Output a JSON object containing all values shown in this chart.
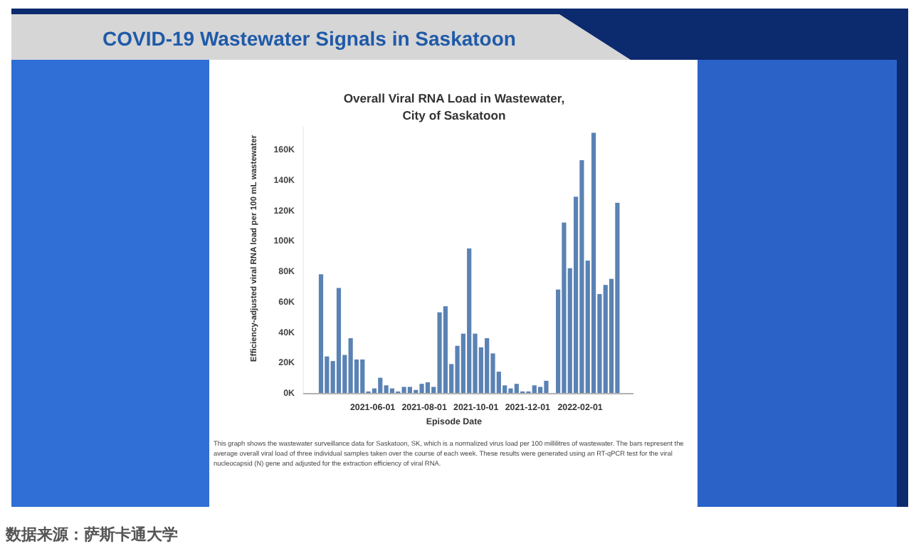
{
  "chart_data": {
    "type": "bar",
    "title": "COVID-19 Wastewater Signals in Saskatoon",
    "subtitle": "Overall Viral RNA Load in Wastewater, City of Saskatoon",
    "xlabel": "Episode Date",
    "ylabel": "Efficiency-adjusted viral RNA load per 100 mL wastewater",
    "x": [
      "2021-04-01",
      "2021-04-08",
      "2021-04-15",
      "2021-04-22",
      "2021-04-29",
      "2021-05-06",
      "2021-05-13",
      "2021-05-20",
      "2021-05-27",
      "2021-06-03",
      "2021-06-10",
      "2021-06-17",
      "2021-06-24",
      "2021-07-01",
      "2021-07-08",
      "2021-07-15",
      "2021-07-22",
      "2021-07-29",
      "2021-08-05",
      "2021-08-12",
      "2021-08-19",
      "2021-08-26",
      "2021-09-02",
      "2021-09-09",
      "2021-09-16",
      "2021-09-23",
      "2021-09-30",
      "2021-10-07",
      "2021-10-14",
      "2021-10-21",
      "2021-10-28",
      "2021-11-04",
      "2021-11-11",
      "2021-11-18",
      "2021-11-25",
      "2021-12-02",
      "2021-12-09",
      "2021-12-16",
      "2021-12-23",
      "2022-01-06",
      "2022-01-13",
      "2022-01-20",
      "2022-01-27",
      "2022-02-03",
      "2022-02-10",
      "2022-02-17",
      "2022-02-24",
      "2022-03-03",
      "2022-03-10",
      "2022-03-17"
    ],
    "values": [
      78000,
      24000,
      21000,
      69000,
      25000,
      36000,
      22000,
      22000,
      1000,
      3000,
      10000,
      5000,
      3000,
      1000,
      4000,
      4000,
      2000,
      6000,
      7000,
      4000,
      53000,
      57000,
      19000,
      31000,
      39000,
      95000,
      39000,
      30000,
      36000,
      26000,
      14000,
      5000,
      3000,
      6000,
      1000,
      1000,
      5000,
      4000,
      8000,
      68000,
      112000,
      82000,
      129000,
      153000,
      87000,
      171000,
      65000,
      71000,
      75000,
      125000
    ],
    "color": "#5a82b4",
    "xlim": [
      "2021-03-11",
      "2022-04-05"
    ],
    "xticks": [
      "2021-06-01",
      "2021-08-01",
      "2021-10-01",
      "2021-12-01",
      "2022-02-01"
    ],
    "ylim": [
      0,
      175000
    ],
    "yticks": [
      {
        "value": 0,
        "label": "0K"
      },
      {
        "value": 20000,
        "label": "20K"
      },
      {
        "value": 40000,
        "label": "40K"
      },
      {
        "value": 60000,
        "label": "60K"
      },
      {
        "value": 80000,
        "label": "80K"
      },
      {
        "value": 100000,
        "label": "100K"
      },
      {
        "value": 120000,
        "label": "120K"
      },
      {
        "value": 140000,
        "label": "140K"
      },
      {
        "value": 160000,
        "label": "160K"
      }
    ],
    "grid": false,
    "annotations": [
      "This graph shows the wastewater surveillance data for Saskatoon, SK, which is a normalized virus load per 100 millilitres of wastewater. The bars represent the average overall viral load of three individual samples taken over the course of each week. These results were generated using an RT-qPCR test for the viral nucleocapsid (N) gene and adjusted for the extraction efficiency of viral RNA.",
      "数据来源：萨斯卡通大学"
    ]
  }
}
